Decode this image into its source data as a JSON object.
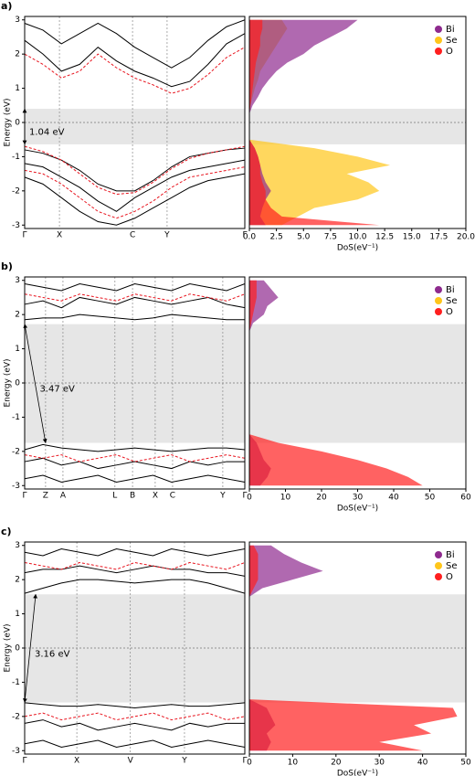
{
  "chart_data": [
    {
      "type": "line",
      "label": "a)",
      "ylabel": "Energy (eV)",
      "xlim": [
        0,
        1
      ],
      "ylim": [
        -3.1,
        3.1
      ],
      "yticks": [
        -3,
        -2,
        -1,
        0,
        1,
        2,
        3
      ],
      "xticks": [
        {
          "value": 0,
          "label": "Γ"
        },
        {
          "value": 0.158,
          "label": "X"
        },
        {
          "value": 0.49,
          "label": "C"
        },
        {
          "value": 0.647,
          "label": "Y"
        },
        {
          "value": 1,
          "label": "Γ"
        }
      ],
      "x": [
        0,
        0.083,
        0.167,
        0.25,
        0.333,
        0.417,
        0.5,
        0.583,
        0.667,
        0.75,
        0.833,
        0.917,
        1
      ],
      "series": [
        {
          "color": "#000000",
          "dash": false,
          "values": [
            2.4,
            2.0,
            1.5,
            1.7,
            2.2,
            1.8,
            1.5,
            1.3,
            1.05,
            1.2,
            1.7,
            2.3,
            2.6
          ]
        },
        {
          "color": "#000000",
          "dash": false,
          "values": [
            2.9,
            2.7,
            2.3,
            2.6,
            2.9,
            2.6,
            2.2,
            1.9,
            1.6,
            1.9,
            2.4,
            2.8,
            3.0
          ]
        },
        {
          "color": "#000000",
          "dash": false,
          "values": [
            -0.8,
            -0.9,
            -1.1,
            -1.4,
            -1.8,
            -2.0,
            -2.0,
            -1.7,
            -1.3,
            -1.0,
            -0.9,
            -0.8,
            -0.75
          ]
        },
        {
          "color": "#000000",
          "dash": false,
          "values": [
            -1.2,
            -1.3,
            -1.6,
            -1.9,
            -2.3,
            -2.6,
            -2.2,
            -1.9,
            -1.6,
            -1.4,
            -1.3,
            -1.2,
            -1.1
          ]
        },
        {
          "color": "#000000",
          "dash": false,
          "values": [
            -1.6,
            -1.8,
            -2.2,
            -2.6,
            -2.9,
            -3.0,
            -2.8,
            -2.5,
            -2.2,
            -1.9,
            -1.7,
            -1.6,
            -1.5
          ]
        },
        {
          "color": "#e8141e",
          "dash": true,
          "values": [
            2.0,
            1.7,
            1.3,
            1.5,
            2.0,
            1.6,
            1.3,
            1.1,
            0.85,
            1.0,
            1.4,
            1.9,
            2.2
          ]
        },
        {
          "color": "#e8141e",
          "dash": true,
          "values": [
            -0.7,
            -0.85,
            -1.1,
            -1.5,
            -1.9,
            -2.1,
            -2.05,
            -1.75,
            -1.35,
            -1.05,
            -0.9,
            -0.8,
            -0.7
          ]
        },
        {
          "color": "#e8141e",
          "dash": true,
          "values": [
            -1.4,
            -1.5,
            -1.8,
            -2.2,
            -2.6,
            -2.8,
            -2.6,
            -2.3,
            -1.9,
            -1.6,
            -1.5,
            -1.4,
            -1.3
          ]
        }
      ],
      "gap": {
        "vbm": {
          "k": 0,
          "energy": -0.64
        },
        "cbm": {
          "k": 0,
          "energy": 0.4
        },
        "label": "1.04 eV"
      }
    },
    {
      "type": "area",
      "orientation": "horizontal",
      "xlabel": "DoS(eV⁻¹)",
      "xlim": [
        0,
        20
      ],
      "ylim": [
        -3.1,
        3.1
      ],
      "legend": "upper right",
      "xticks": [
        {
          "value": 0,
          "label": "0.0"
        },
        {
          "value": 2.5,
          "label": "2.5"
        },
        {
          "value": 5,
          "label": "5.0"
        },
        {
          "value": 7.5,
          "label": "7.5"
        },
        {
          "value": 10,
          "label": "10.0"
        },
        {
          "value": 12.5,
          "label": "12.5"
        },
        {
          "value": 15,
          "label": "15.0"
        },
        {
          "value": 17.5,
          "label": "17.5"
        },
        {
          "value": 20,
          "label": "20.0"
        }
      ],
      "y": [
        -3,
        -2.75,
        -2.5,
        -2.25,
        -2,
        -1.75,
        -1.5,
        -1.25,
        -1,
        -0.75,
        -0.5,
        -0.25,
        0,
        0.25,
        0.5,
        0.75,
        1,
        1.25,
        1.5,
        1.75,
        2,
        2.25,
        2.5,
        2.75,
        3
      ],
      "series": [
        {
          "name": "Bi",
          "color": "#8e2a8e",
          "values": [
            1.5,
            1.0,
            1.2,
            1.5,
            2.0,
            1.5,
            1.2,
            1.0,
            0.8,
            0.5,
            0,
            0,
            0,
            0,
            0.3,
            0.8,
            1.2,
            1.8,
            2.5,
            3.5,
            5.0,
            6.0,
            7.5,
            9.0,
            10.0
          ]
        },
        {
          "name": "Se",
          "color": "#ffc61a",
          "values": [
            3,
            4.5,
            6,
            10,
            12,
            11,
            9,
            13,
            10,
            6,
            0,
            0,
            0,
            0,
            0.1,
            0.3,
            0.5,
            0.8,
            1,
            1.5,
            2,
            2.5,
            3,
            3.5,
            3
          ]
        },
        {
          "name": "O",
          "color": "#ff1f1f",
          "values": [
            12,
            3,
            2,
            1.5,
            1.5,
            1.2,
            1,
            1,
            0.8,
            0.5,
            0,
            0,
            0,
            0,
            0.1,
            0.2,
            0.3,
            0.4,
            0.5,
            0.6,
            0.8,
            1,
            1,
            1.2,
            1.2
          ]
        }
      ]
    },
    {
      "type": "line",
      "label": "b)",
      "ylabel": "Energy (eV)",
      "xlim": [
        0,
        1
      ],
      "ylim": [
        -3.1,
        3.1
      ],
      "yticks": [
        -3,
        -2,
        -1,
        0,
        1,
        2,
        3
      ],
      "xticks": [
        {
          "value": 0,
          "label": "Γ"
        },
        {
          "value": 0.095,
          "label": "Z"
        },
        {
          "value": 0.174,
          "label": "A"
        },
        {
          "value": 0.41,
          "label": "L"
        },
        {
          "value": 0.49,
          "label": "B"
        },
        {
          "value": 0.593,
          "label": "X"
        },
        {
          "value": 0.672,
          "label": "C"
        },
        {
          "value": 0.9,
          "label": "Y"
        },
        {
          "value": 1,
          "label": "Γ"
        }
      ],
      "x": [
        0,
        0.083,
        0.167,
        0.25,
        0.333,
        0.417,
        0.5,
        0.583,
        0.667,
        0.75,
        0.833,
        0.917,
        1
      ],
      "series": [
        {
          "color": "#000000",
          "dash": false,
          "values": [
            1.85,
            1.9,
            1.9,
            2.0,
            1.95,
            1.9,
            1.85,
            1.9,
            2.0,
            1.95,
            1.9,
            1.85,
            1.85
          ]
        },
        {
          "color": "#000000",
          "dash": false,
          "values": [
            2.3,
            2.4,
            2.2,
            2.5,
            2.4,
            2.3,
            2.5,
            2.4,
            2.3,
            2.4,
            2.5,
            2.3,
            2.2
          ]
        },
        {
          "color": "#000000",
          "dash": false,
          "values": [
            2.9,
            2.8,
            2.7,
            2.9,
            2.8,
            2.7,
            2.9,
            2.8,
            2.7,
            2.9,
            2.8,
            2.7,
            2.9
          ]
        },
        {
          "color": "#000000",
          "dash": false,
          "values": [
            -1.95,
            -1.8,
            -1.9,
            -1.95,
            -2.0,
            -1.95,
            -1.9,
            -1.95,
            -2.0,
            -1.95,
            -1.9,
            -1.9,
            -1.95
          ]
        },
        {
          "color": "#000000",
          "dash": false,
          "values": [
            -2.3,
            -2.2,
            -2.4,
            -2.3,
            -2.5,
            -2.4,
            -2.3,
            -2.4,
            -2.5,
            -2.3,
            -2.4,
            -2.3,
            -2.3
          ]
        },
        {
          "color": "#000000",
          "dash": false,
          "values": [
            -2.8,
            -2.7,
            -2.9,
            -2.8,
            -2.7,
            -2.9,
            -2.8,
            -2.7,
            -2.9,
            -2.8,
            -2.7,
            -2.8,
            -2.9
          ]
        },
        {
          "color": "#e8141e",
          "dash": true,
          "values": [
            2.6,
            2.5,
            2.4,
            2.6,
            2.5,
            2.4,
            2.6,
            2.5,
            2.4,
            2.6,
            2.5,
            2.4,
            2.6
          ]
        },
        {
          "color": "#e8141e",
          "dash": true,
          "values": [
            -2.1,
            -2.2,
            -2.1,
            -2.3,
            -2.2,
            -2.1,
            -2.3,
            -2.2,
            -2.1,
            -2.3,
            -2.2,
            -2.1,
            -2.2
          ]
        }
      ],
      "gap": {
        "vbm": {
          "k": 0.095,
          "energy": -1.75
        },
        "cbm": {
          "k": 0,
          "energy": 1.72
        },
        "label": "3.47 eV"
      }
    },
    {
      "type": "area",
      "orientation": "horizontal",
      "xlabel": "DoS(eV⁻¹)",
      "xlim": [
        0,
        60
      ],
      "ylim": [
        -3.1,
        3.1
      ],
      "legend": "upper right",
      "xticks": [
        0,
        10,
        20,
        30,
        40,
        50,
        60
      ],
      "y": [
        -3,
        -2.75,
        -2.5,
        -2.25,
        -2,
        -1.75,
        -1.5,
        -1.25,
        -1,
        -0.75,
        -0.5,
        -0.25,
        0,
        0.25,
        0.5,
        0.75,
        1,
        1.25,
        1.5,
        1.75,
        2,
        2.25,
        2.5,
        2.75,
        3
      ],
      "series": [
        {
          "name": "Bi",
          "color": "#8e2a8e",
          "values": [
            3,
            5,
            6,
            4,
            3,
            2,
            0,
            0,
            0,
            0,
            0,
            0,
            0,
            0,
            0,
            0,
            0,
            0,
            0,
            1,
            4,
            5,
            8,
            6,
            4
          ]
        },
        {
          "name": "Se",
          "color": "#ffc61a",
          "values": [
            0.3,
            0.3,
            0.3,
            0.2,
            0.2,
            0.1,
            0,
            0,
            0,
            0,
            0,
            0,
            0,
            0,
            0,
            0,
            0,
            0,
            0,
            0,
            0,
            0,
            0,
            0,
            0
          ]
        },
        {
          "name": "O",
          "color": "#ff1f1f",
          "values": [
            48,
            44,
            38,
            30,
            20,
            8,
            0,
            0,
            0,
            0,
            0,
            0,
            0,
            0,
            0,
            0,
            0,
            0,
            0,
            0.5,
            1,
            1.5,
            2,
            2,
            2
          ]
        }
      ]
    },
    {
      "type": "line",
      "label": "c)",
      "ylabel": "Energy (eV)",
      "xlim": [
        0,
        1
      ],
      "ylim": [
        -3.1,
        3.1
      ],
      "yticks": [
        -3,
        -2,
        -1,
        0,
        1,
        2,
        3
      ],
      "xticks": [
        {
          "value": 0,
          "label": "Γ"
        },
        {
          "value": 0.237,
          "label": "X"
        },
        {
          "value": 0.48,
          "label": "V"
        },
        {
          "value": 0.726,
          "label": "Y"
        },
        {
          "value": 1,
          "label": "Γ"
        }
      ],
      "x": [
        0,
        0.083,
        0.167,
        0.25,
        0.333,
        0.417,
        0.5,
        0.583,
        0.667,
        0.75,
        0.833,
        0.917,
        1
      ],
      "series": [
        {
          "color": "#000000",
          "dash": false,
          "values": [
            1.6,
            1.75,
            1.9,
            2.0,
            2.0,
            1.95,
            1.9,
            1.95,
            2.0,
            2.0,
            1.9,
            1.75,
            1.6
          ]
        },
        {
          "color": "#000000",
          "dash": false,
          "values": [
            2.2,
            2.3,
            2.3,
            2.4,
            2.3,
            2.2,
            2.3,
            2.4,
            2.3,
            2.3,
            2.2,
            2.2,
            2.1
          ]
        },
        {
          "color": "#000000",
          "dash": false,
          "values": [
            2.8,
            2.7,
            2.9,
            2.8,
            2.7,
            2.9,
            2.8,
            2.7,
            2.9,
            2.8,
            2.7,
            2.8,
            2.9
          ]
        },
        {
          "color": "#000000",
          "dash": false,
          "values": [
            -1.6,
            -1.65,
            -1.7,
            -1.7,
            -1.65,
            -1.7,
            -1.75,
            -1.7,
            -1.65,
            -1.7,
            -1.7,
            -1.65,
            -1.6
          ]
        },
        {
          "color": "#000000",
          "dash": false,
          "values": [
            -2.2,
            -2.1,
            -2.3,
            -2.2,
            -2.4,
            -2.3,
            -2.2,
            -2.3,
            -2.4,
            -2.2,
            -2.3,
            -2.2,
            -2.2
          ]
        },
        {
          "color": "#000000",
          "dash": false,
          "values": [
            -2.8,
            -2.7,
            -2.9,
            -2.8,
            -2.7,
            -2.9,
            -2.8,
            -2.7,
            -2.9,
            -2.8,
            -2.7,
            -2.8,
            -2.9
          ]
        },
        {
          "color": "#e8141e",
          "dash": true,
          "values": [
            2.5,
            2.4,
            2.3,
            2.5,
            2.4,
            2.3,
            2.5,
            2.4,
            2.3,
            2.5,
            2.4,
            2.3,
            2.5
          ]
        },
        {
          "color": "#e8141e",
          "dash": true,
          "values": [
            -2.0,
            -1.9,
            -2.1,
            -2.0,
            -1.9,
            -2.1,
            -2.0,
            -1.9,
            -2.1,
            -2.0,
            -1.9,
            -2.1,
            -2.0
          ]
        }
      ],
      "gap": {
        "vbm": {
          "k": 0,
          "energy": -1.59
        },
        "cbm": {
          "k": 0.05,
          "energy": 1.57
        },
        "label": "3.16 eV"
      }
    },
    {
      "type": "area",
      "orientation": "horizontal",
      "xlabel": "DoS(eV⁻¹)",
      "xlim": [
        0,
        50
      ],
      "ylim": [
        -3.1,
        3.1
      ],
      "legend": "upper right",
      "xticks": [
        0,
        10,
        20,
        30,
        40,
        50
      ],
      "y": [
        -3,
        -2.75,
        -2.5,
        -2.25,
        -2,
        -1.75,
        -1.5,
        -1.25,
        -1,
        -0.75,
        -0.5,
        -0.25,
        0,
        0.25,
        0.5,
        0.75,
        1,
        1.25,
        1.5,
        1.75,
        2,
        2.25,
        2.5,
        2.75,
        3
      ],
      "series": [
        {
          "name": "Bi",
          "color": "#8e2a8e",
          "values": [
            4,
            5,
            4,
            6,
            5,
            4,
            0,
            0,
            0,
            0,
            0,
            0,
            0,
            0,
            0,
            0,
            0,
            0,
            0,
            3,
            10,
            17,
            12,
            8,
            5
          ]
        },
        {
          "name": "Se",
          "color": "#ffc61a",
          "values": [
            0.3,
            0.3,
            0.3,
            0.2,
            0.2,
            0.1,
            0,
            0,
            0,
            0,
            0,
            0,
            0,
            0,
            0,
            0,
            0,
            0,
            0,
            0,
            0,
            0,
            0,
            0,
            0
          ]
        },
        {
          "name": "O",
          "color": "#ff1f1f",
          "values": [
            40,
            30,
            42,
            38,
            48,
            47,
            0,
            0,
            0,
            0,
            0,
            0,
            0,
            0,
            0,
            0,
            0,
            0,
            0,
            1,
            2,
            2,
            2,
            2,
            1
          ]
        }
      ]
    }
  ]
}
